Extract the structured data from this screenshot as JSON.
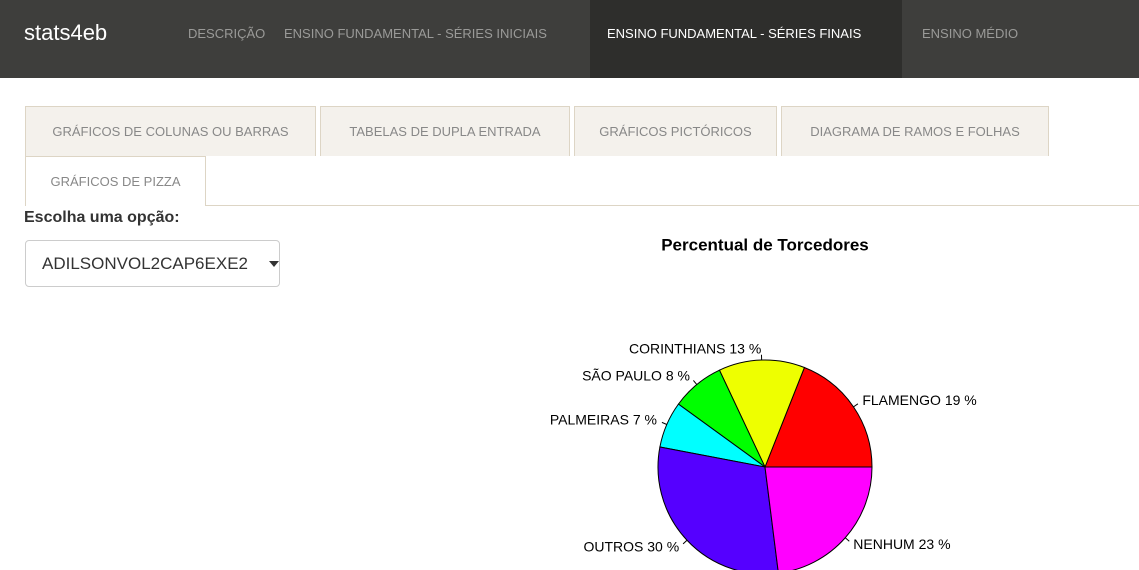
{
  "navbar": {
    "brand": "stats4eb",
    "items": [
      "DESCRIÇÃO",
      "ENSINO FUNDAMENTAL - SÉRIES INICIAIS",
      "ENSINO FUNDAMENTAL - SÉRIES FINAIS",
      "ENSINO MÉDIO"
    ]
  },
  "tabs": [
    "GRÁFICOS DE COLUNAS OU BARRAS",
    "TABELAS DE DUPLA ENTRADA",
    "GRÁFICOS PICTÓRICOS",
    "DIAGRAMA DE RAMOS E FOLHAS",
    "GRÁFICOS DE PIZZA"
  ],
  "select": {
    "label": "Escolha uma opção:",
    "value": "ADILSONVOL2CAP6EXE2"
  },
  "chart_data": {
    "type": "pie",
    "title": "Percentual de Torcedores",
    "categories": [
      "FLAMENGO",
      "CORINTHIANS",
      "SÃO PAULO",
      "PALMEIRAS",
      "OUTROS",
      "NENHUM"
    ],
    "values": [
      19,
      13,
      8,
      7,
      30,
      23
    ],
    "value_labels": [
      "19 %",
      "13 %",
      "8 %",
      "7 %",
      "30 %",
      "23 %"
    ],
    "colors": [
      "#ff0000",
      "#eeff00",
      "#00ff00",
      "#00ffff",
      "#5500ff",
      "#ff00ff"
    ]
  }
}
